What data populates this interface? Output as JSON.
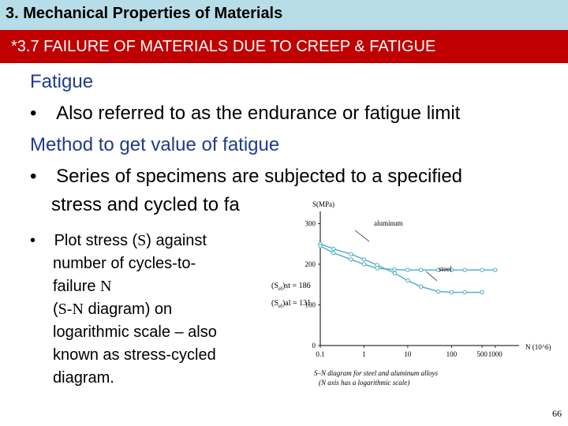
{
  "header": {
    "title": "3. Mechanical Properties of Materials"
  },
  "section": {
    "title": "*3.7 FAILURE OF MATERIALS DUE TO CREEP & FATIGUE"
  },
  "content": {
    "heading1": "Fatigue",
    "bullet1": "Also referred to as the endurance or fatigue limit",
    "heading2": "Method to get value of fatigue",
    "bullet2_line1": "Series of specimens are subjected to a specified",
    "bullet2_line2": "stress and cycled to fa",
    "bullet3": {
      "l1_a": "Plot stress (",
      "l1_sym": "S",
      "l1_b": ") against",
      "l2": "number of cycles-to-",
      "l3_a": "failure ",
      "l3_sym": "N",
      "l4_a": "(",
      "l4_sym": "S-N",
      "l4_b": " diagram) on",
      "l5": "logarithmic scale – also",
      "l6": "known as stress-cycled",
      "l7": "diagram."
    },
    "bullet_symbol": "•"
  },
  "chart_data": {
    "type": "line",
    "ylabel": "S(MPa)",
    "xlabel": "N (10^6)",
    "xscale": "log",
    "x_ticks": [
      "0.1",
      "1",
      "10",
      "100",
      "500",
      "1000"
    ],
    "y_ticks": [
      "0",
      "100",
      "200",
      "300"
    ],
    "ylim": [
      0,
      330
    ],
    "xlim": [
      0.1,
      1000
    ],
    "series": [
      {
        "name": "aluminum",
        "x": [
          0.1,
          0.2,
          0.5,
          1,
          2,
          5,
          10,
          20,
          50,
          100,
          200,
          500
        ],
        "y": [
          250,
          238,
          225,
          212,
          198,
          178,
          160,
          145,
          133,
          131,
          131,
          131
        ]
      },
      {
        "name": "steel",
        "x": [
          0.1,
          0.2,
          0.5,
          1,
          2,
          5,
          10,
          20,
          50,
          100,
          200,
          500,
          1000
        ],
        "y": [
          245,
          228,
          212,
          200,
          190,
          187,
          186,
          186,
          186,
          186,
          186,
          186,
          186
        ]
      }
    ],
    "annotations": {
      "steel_label": "(S",
      "steel_sub": "el",
      "steel_rhs": ")st = 186",
      "al_label": "(S",
      "al_sub": "el",
      "al_rhs": ")al = 131"
    },
    "caption_line1": "S–N diagram for steel and aluminum alloys",
    "caption_line2": "(N axis has a logarithmic scale)",
    "colors": {
      "line": "#4bacc6",
      "axis": "#000000"
    }
  },
  "page": {
    "number": "66"
  }
}
